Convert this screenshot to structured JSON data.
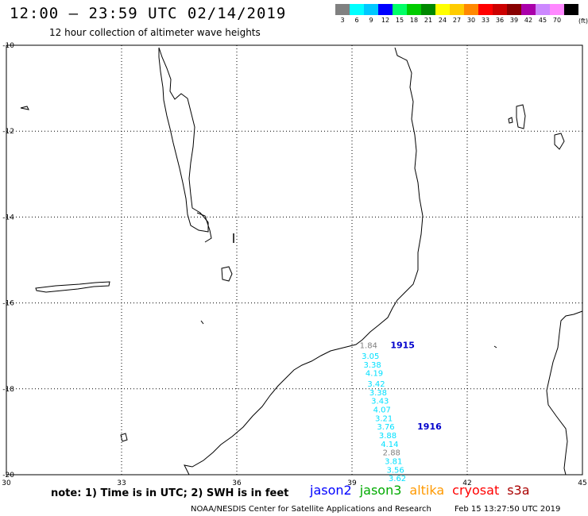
{
  "header": {
    "title": "12:00 — 23:59 UTC 02/14/2019",
    "subtitle": "12 hour collection of altimeter wave heights"
  },
  "legend": {
    "unit": "(ft)",
    "swatches": [
      {
        "color": "#808080",
        "label": "3"
      },
      {
        "color": "#00ffff",
        "label": "6"
      },
      {
        "color": "#00c8ff",
        "label": "9"
      },
      {
        "color": "#0000ff",
        "label": "12"
      },
      {
        "color": "#00ff66",
        "label": "15"
      },
      {
        "color": "#00cc00",
        "label": "18"
      },
      {
        "color": "#008800",
        "label": "21"
      },
      {
        "color": "#ffff00",
        "label": "24"
      },
      {
        "color": "#ffcc00",
        "label": "27"
      },
      {
        "color": "#ff8800",
        "label": "30"
      },
      {
        "color": "#ff0000",
        "label": "33"
      },
      {
        "color": "#cc0000",
        "label": "36"
      },
      {
        "color": "#880000",
        "label": "39"
      },
      {
        "color": "#aa00aa",
        "label": "42"
      },
      {
        "color": "#cc88ff",
        "label": "45"
      },
      {
        "color": "#ff88ff",
        "label": "70"
      },
      {
        "color": "#000000",
        "label": ""
      }
    ]
  },
  "axes": {
    "lon": {
      "min": 30,
      "max": 45,
      "ticks": [
        "30",
        "33",
        "36",
        "39",
        "42",
        "45"
      ]
    },
    "lat": {
      "min": -20,
      "max": -10,
      "ticks": [
        "-10",
        "-12",
        "-14",
        "-16",
        "-18",
        "-20"
      ]
    }
  },
  "observations": [
    {
      "lon": 39.2,
      "lat": -17.05,
      "value": "1.84",
      "color": "#808080"
    },
    {
      "lon": 39.25,
      "lat": -17.3,
      "value": "3.05",
      "color": "#00e0ff"
    },
    {
      "lon": 39.3,
      "lat": -17.5,
      "value": "3.38",
      "color": "#00e0ff"
    },
    {
      "lon": 39.35,
      "lat": -17.7,
      "value": "4.19",
      "color": "#00e0ff"
    },
    {
      "lon": 39.4,
      "lat": -17.95,
      "value": "3.42",
      "color": "#00e0ff"
    },
    {
      "lon": 39.45,
      "lat": -18.15,
      "value": "3.38",
      "color": "#00e0ff"
    },
    {
      "lon": 39.5,
      "lat": -18.35,
      "value": "3.43",
      "color": "#00e0ff"
    },
    {
      "lon": 39.55,
      "lat": -18.55,
      "value": "4.07",
      "color": "#00e0ff"
    },
    {
      "lon": 39.6,
      "lat": -18.75,
      "value": "3.21",
      "color": "#00e0ff"
    },
    {
      "lon": 39.65,
      "lat": -18.95,
      "value": "3.76",
      "color": "#00e0ff"
    },
    {
      "lon": 39.7,
      "lat": -19.15,
      "value": "3.88",
      "color": "#00e0ff"
    },
    {
      "lon": 39.75,
      "lat": -19.35,
      "value": "4.14",
      "color": "#00e0ff"
    },
    {
      "lon": 39.8,
      "lat": -19.55,
      "value": "2.88",
      "color": "#808080"
    },
    {
      "lon": 39.85,
      "lat": -19.75,
      "value": "3.81",
      "color": "#00e0ff"
    },
    {
      "lon": 39.9,
      "lat": -19.95,
      "value": "3.56",
      "color": "#00e0ff"
    },
    {
      "lon": 39.95,
      "lat": -20.15,
      "value": "3.62",
      "color": "#00e0ff"
    }
  ],
  "time_labels": [
    {
      "lon": 40.0,
      "lat": -17.05,
      "text": "1915",
      "color": "#0000cc"
    },
    {
      "lon": 40.7,
      "lat": -18.95,
      "text": "1916",
      "color": "#0000cc"
    }
  ],
  "footer": {
    "note": "note: 1) Time is in UTC; 2) SWH is in feet",
    "satellites": [
      {
        "name": "jason2",
        "color": "#0000ff"
      },
      {
        "name": "jason3",
        "color": "#00aa00"
      },
      {
        "name": "altika",
        "color": "#ff9900"
      },
      {
        "name": "cryosat",
        "color": "#ff0000"
      },
      {
        "name": "s3a",
        "color": "#aa0000"
      }
    ],
    "credit": "NOAA/NESDIS Center for Satellite Applications and Research",
    "timestamp": "Feb 15 13:27:50 UTC 2019"
  }
}
